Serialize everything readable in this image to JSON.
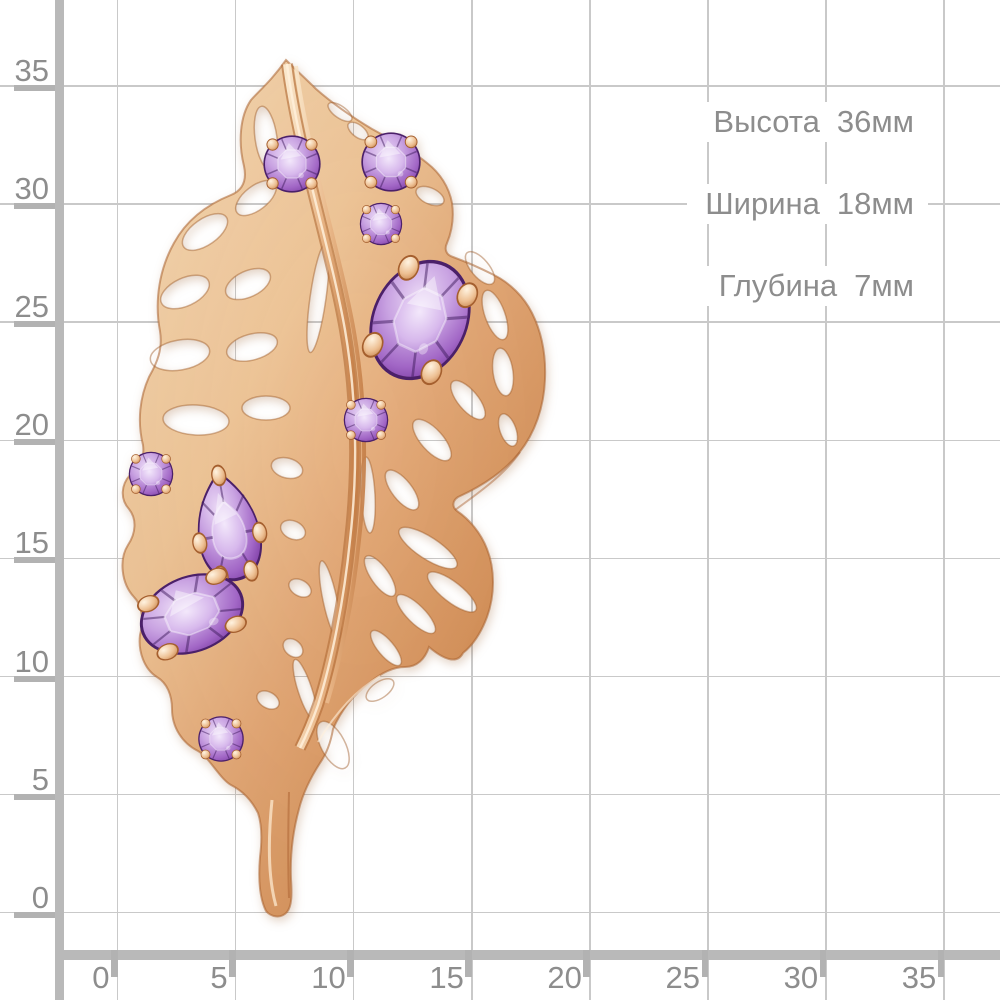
{
  "page": {
    "background": "#ffffff"
  },
  "ruler": {
    "x_axis": {
      "labels": [
        "0",
        "5",
        "10",
        "15",
        "20",
        "25",
        "30",
        "35"
      ]
    },
    "y_axis": {
      "labels": [
        "35",
        "30",
        "25",
        "20",
        "15",
        "10",
        "5",
        "0"
      ]
    },
    "colors": {
      "grid_line": "#c9c9c9",
      "axis_bar": "#b9b9b9",
      "tick": "#b2b2b2",
      "label_text": "#8d8d8d"
    }
  },
  "specs": [
    {
      "label": "Высота",
      "value": "36мм"
    },
    {
      "label": "Ширина",
      "value": "18мм"
    },
    {
      "label": "Глубина",
      "value": "7мм"
    }
  ],
  "product": {
    "description": "Rose-gold openwork oak-leaf pendant set with amethysts",
    "stone_count": 9,
    "colors": {
      "gold": "#e2a877",
      "gold_dark": "#b96f3a",
      "amethyst": "#a267c6",
      "amethyst_dark": "#5c2b80"
    }
  }
}
